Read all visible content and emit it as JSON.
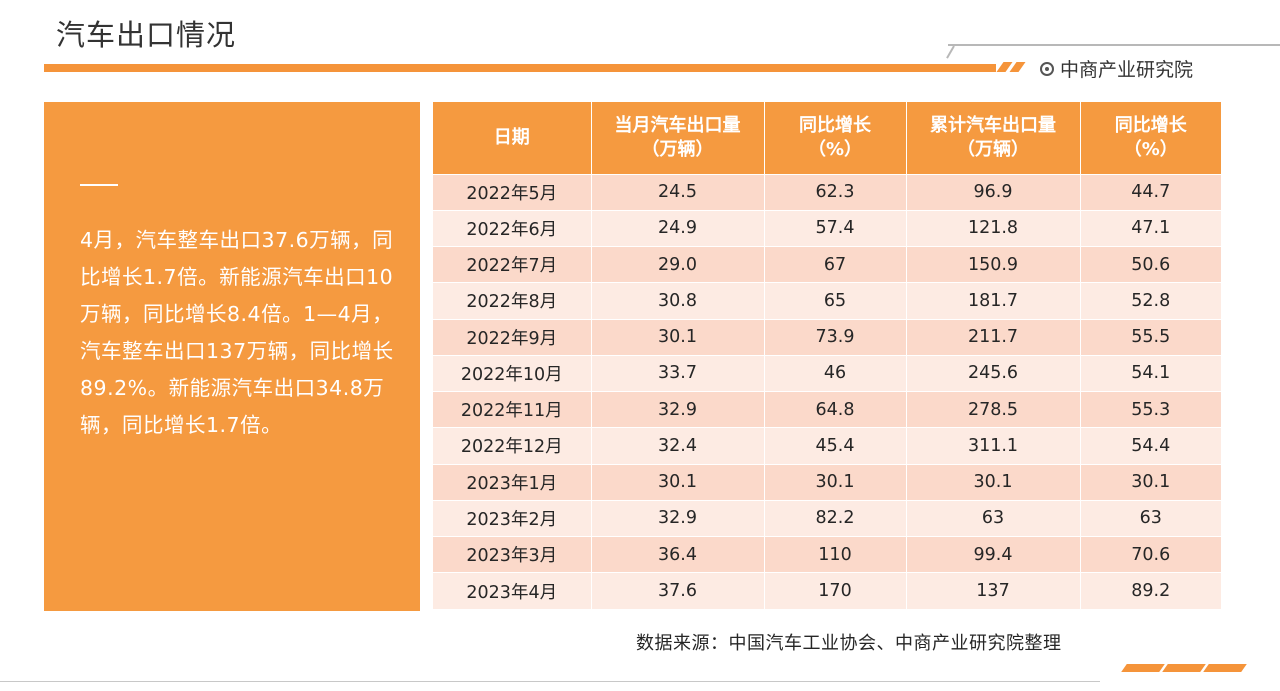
{
  "header": {
    "title": "汽车出口情况",
    "brand": "中商产业研究院"
  },
  "summary": {
    "text": "4月，汽车整车出口37.6万辆，同比增长1.7倍。新能源汽车出口10万辆，同比增长8.4倍。1—4月，汽车整车出口137万辆，同比增长89.2%。新能源汽车出口34.8万辆，同比增长1.7倍。"
  },
  "table": {
    "headers": [
      [
        "日期"
      ],
      [
        "当月汽车出口量",
        "（万辆）"
      ],
      [
        "同比增长",
        "（%）"
      ],
      [
        "累计汽车出口量",
        "（万辆）"
      ],
      [
        "同比增长",
        "（%）"
      ]
    ],
    "rows": [
      [
        "2022年5月",
        "24.5",
        "62.3",
        "96.9",
        "44.7"
      ],
      [
        "2022年6月",
        "24.9",
        "57.4",
        "121.8",
        "47.1"
      ],
      [
        "2022年7月",
        "29.0",
        "67",
        "150.9",
        "50.6"
      ],
      [
        "2022年8月",
        "30.8",
        "65",
        "181.7",
        "52.8"
      ],
      [
        "2022年9月",
        "30.1",
        "73.9",
        "211.7",
        "55.5"
      ],
      [
        "2022年10月",
        "33.7",
        "46",
        "245.6",
        "54.1"
      ],
      [
        "2022年11月",
        "32.9",
        "64.8",
        "278.5",
        "55.3"
      ],
      [
        "2022年12月",
        "32.4",
        "45.4",
        "311.1",
        "54.4"
      ],
      [
        "2023年1月",
        "30.1",
        "30.1",
        "30.1",
        "30.1"
      ],
      [
        "2023年2月",
        "32.9",
        "82.2",
        "63",
        "63"
      ],
      [
        "2023年3月",
        "36.4",
        "110",
        "99.4",
        "70.6"
      ],
      [
        "2023年4月",
        "37.6",
        "170",
        "137",
        "89.2"
      ]
    ]
  },
  "footer": {
    "source": "数据来源：中国汽车工业协会、中商产业研究院整理"
  },
  "colors": {
    "accent": "#f5943a",
    "row_dark": "#fbd9ca",
    "row_light": "#fdebe3"
  },
  "icons": {
    "brand": "target-circle-icon"
  }
}
